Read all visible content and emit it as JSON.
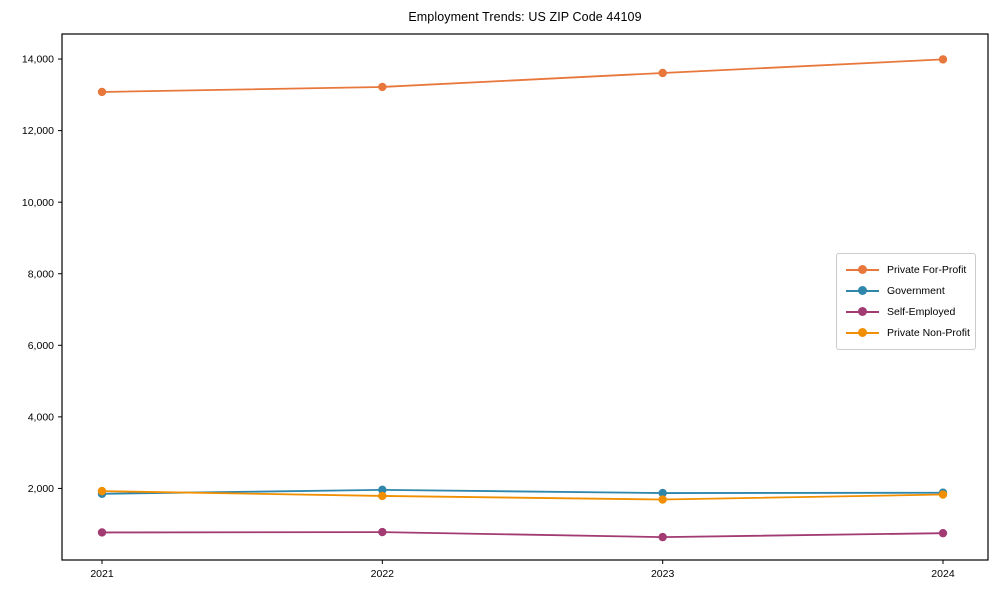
{
  "figure": {
    "background": "#ffffff",
    "axis_color": "#000000"
  },
  "chart_data": {
    "type": "line",
    "title": "Employment Trends: US ZIP Code 44109",
    "xlabel": "",
    "ylabel": "",
    "x_tick_labels": [
      "2021",
      "2022",
      "2023",
      "2024"
    ],
    "y_ticks": [
      2000,
      4000,
      6000,
      8000,
      10000,
      12000,
      14000
    ],
    "y_tick_labels": [
      "2,000",
      "4,000",
      "6,000",
      "8,000",
      "10,000",
      "12,000",
      "14,000"
    ],
    "ylim": [
      0,
      14700
    ],
    "grid": false,
    "legend_position": "center-right",
    "marker": "circle",
    "series": [
      {
        "name": "Private For-Profit",
        "color": "#E8773C",
        "values": [
          13080,
          13220,
          13610,
          13990
        ]
      },
      {
        "name": "Government",
        "color": "#2E86AB",
        "values": [
          1850,
          1960,
          1870,
          1880
        ]
      },
      {
        "name": "Self-Employed",
        "color": "#A23B72",
        "values": [
          770,
          780,
          640,
          750
        ]
      },
      {
        "name": "Private Non-Profit",
        "color": "#F18F01",
        "values": [
          1925,
          1790,
          1690,
          1830
        ]
      }
    ]
  }
}
